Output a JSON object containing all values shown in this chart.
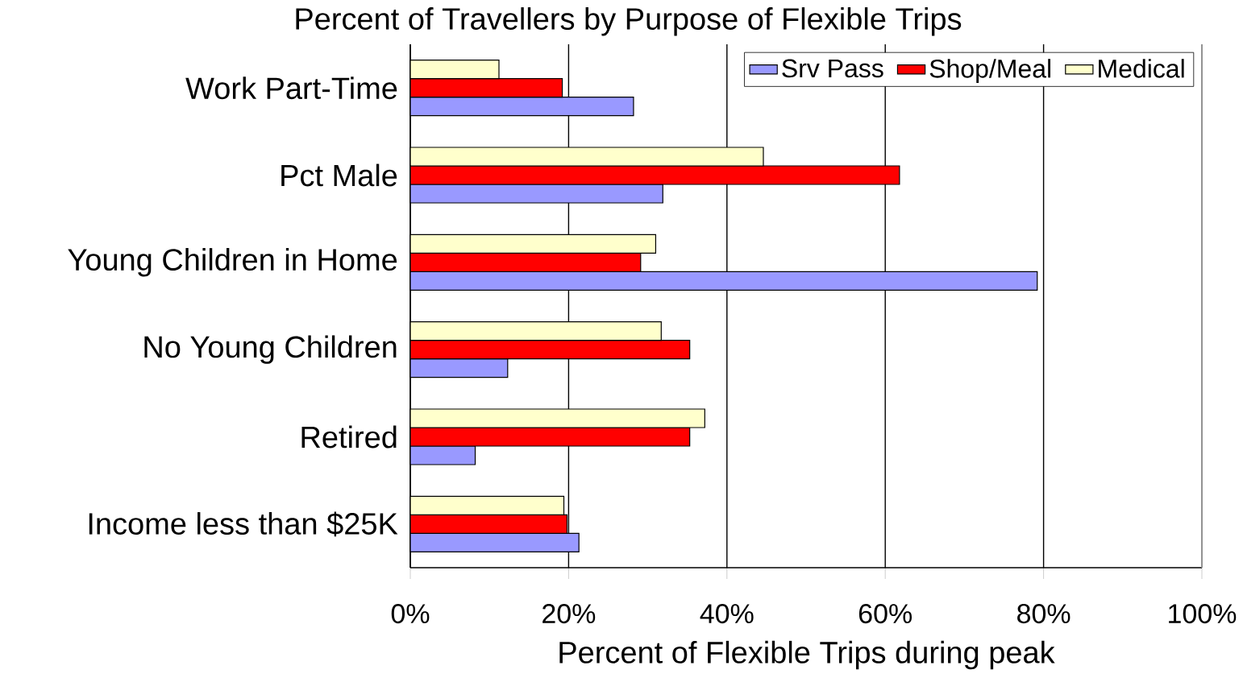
{
  "chart_data": {
    "type": "bar",
    "orientation": "horizontal",
    "title": "Percent of Travellers by Purpose of Flexible Trips",
    "xlabel": "Percent of Flexible Trips during peak",
    "categories": [
      "Work Part-Time",
      "Pct Male",
      "Young Children in Home",
      "No Young Children",
      "Retired",
      "Income less than $25K"
    ],
    "series": [
      {
        "name": "Srv Pass",
        "color": "#9999ff",
        "values": [
          28.2,
          31.9,
          79.2,
          12.3,
          8.2,
          21.3
        ]
      },
      {
        "name": "Shop/Meal",
        "color": "#ff0000",
        "values": [
          19.2,
          61.8,
          29.1,
          35.3,
          35.3,
          19.8
        ]
      },
      {
        "name": "Medical",
        "color": "#ffffcc",
        "values": [
          11.2,
          44.6,
          31.0,
          31.7,
          37.2,
          19.4
        ]
      }
    ],
    "xlim": [
      0,
      100
    ],
    "xticks": [
      {
        "value": 0,
        "label": "0%"
      },
      {
        "value": 20,
        "label": "20%"
      },
      {
        "value": 40,
        "label": "40%"
      },
      {
        "value": 60,
        "label": "60%"
      },
      {
        "value": 80,
        "label": "80%"
      },
      {
        "value": 100,
        "label": "100%"
      }
    ],
    "grid": "x",
    "legend": "top right"
  }
}
